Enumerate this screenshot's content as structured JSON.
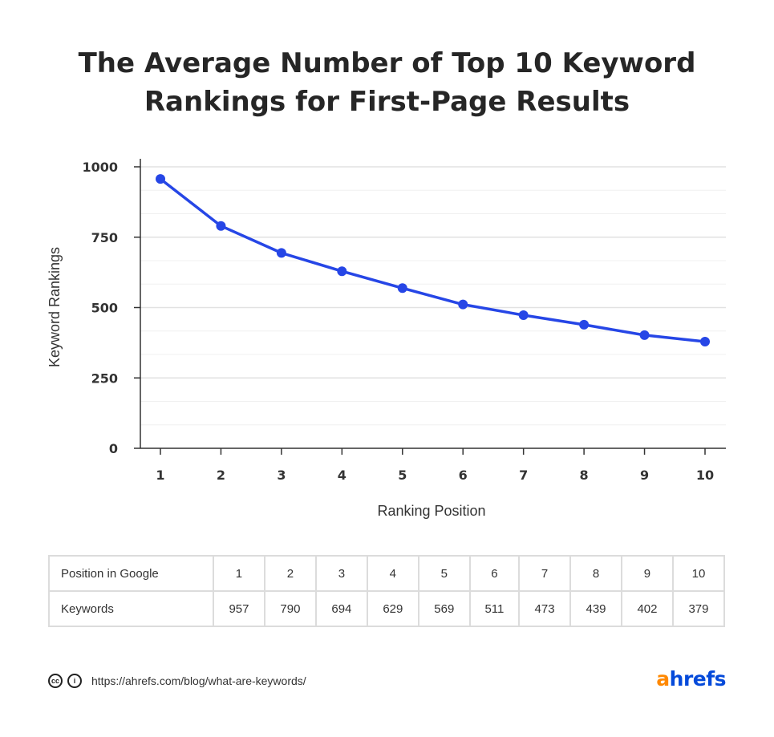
{
  "title_lines": [
    "The Average Number of Top 10 Keyword",
    "Rankings for First-Page Results"
  ],
  "chart_data": {
    "type": "line",
    "title": "The Average Number of Top 10 Keyword Rankings for First-Page Results",
    "xlabel": "Ranking Position",
    "ylabel": "Keyword Rankings",
    "x": [
      1,
      2,
      3,
      4,
      5,
      6,
      7,
      8,
      9,
      10
    ],
    "series": [
      {
        "values": [
          957,
          790,
          694,
          629,
          569,
          511,
          473,
          439,
          402,
          379
        ]
      }
    ],
    "ylim": [
      0,
      1000
    ],
    "yticks": [
      0,
      250,
      500,
      750,
      1000
    ],
    "grid": true,
    "line_color": "#2646e6"
  },
  "table": {
    "rows": [
      {
        "label": "Position in  Google",
        "cells": [
          "1",
          "2",
          "3",
          "4",
          "5",
          "6",
          "7",
          "8",
          "9",
          "10"
        ]
      },
      {
        "label": "Keywords",
        "cells": [
          "957",
          "790",
          "694",
          "629",
          "569",
          "511",
          "473",
          "439",
          "402",
          "379"
        ]
      }
    ]
  },
  "footer": {
    "cc_icon": "cc-icon",
    "by_icon": "attribution-icon",
    "url": "https://ahrefs.com/blog/what-are-keywords/"
  },
  "logo": {
    "a": "a",
    "rest": "hrefs"
  }
}
